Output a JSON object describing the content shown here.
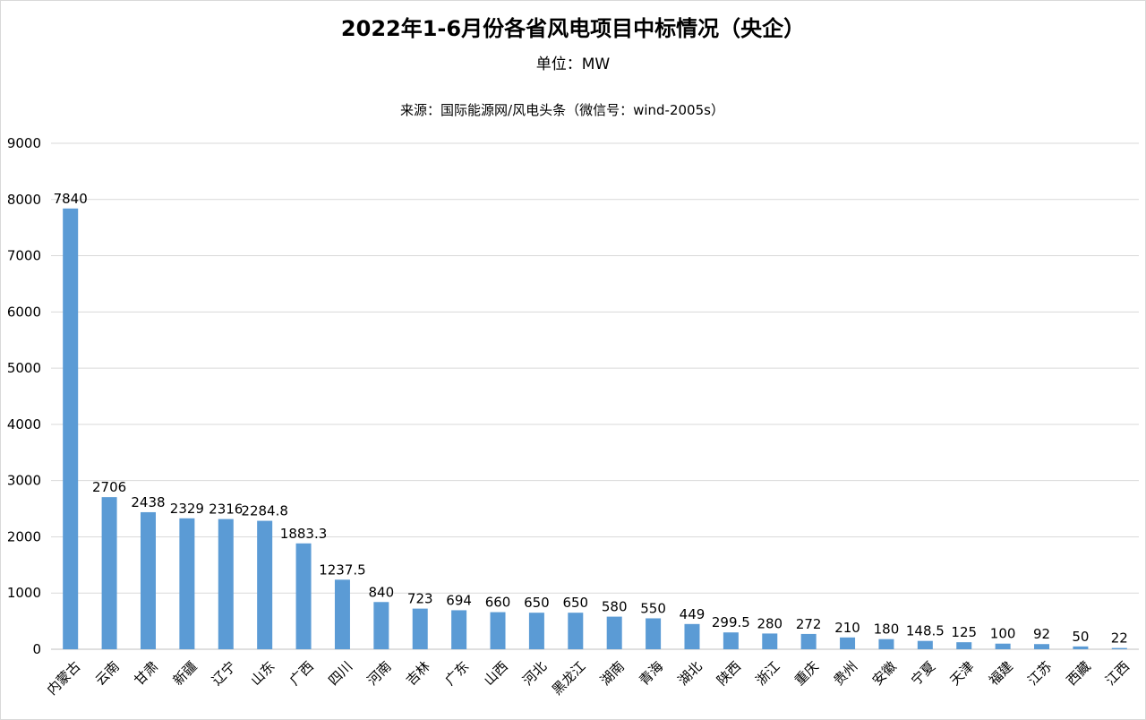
{
  "chart_data": {
    "type": "bar",
    "title": "2022年1-6月份各省风电项目中标情况（央企）",
    "subtitle": "单位：MW",
    "source": "来源：国际能源网/风电头条（微信号：wind-2005s）",
    "categories": [
      "内蒙古",
      "云南",
      "甘肃",
      "新疆",
      "辽宁",
      "山东",
      "广西",
      "四川",
      "河南",
      "吉林",
      "广东",
      "山西",
      "河北",
      "黑龙江",
      "湖南",
      "青海",
      "湖北",
      "陕西",
      "浙江",
      "重庆",
      "贵州",
      "安徽",
      "宁夏",
      "天津",
      "福建",
      "江苏",
      "西藏",
      "江西"
    ],
    "values": [
      7840,
      2706,
      2438,
      2329,
      2316,
      2284.8,
      1883.3,
      1237.5,
      840,
      723,
      694,
      660,
      650,
      650,
      580,
      550,
      449,
      299.5,
      280,
      272,
      210,
      180,
      148.5,
      125,
      100,
      92,
      50,
      22
    ],
    "value_labels": [
      "7840",
      "2706",
      "2438",
      "2329",
      "2316",
      "2284.8",
      "1883.3",
      "1237.5",
      "840",
      "723",
      "694",
      "660",
      "650",
      "650",
      "580",
      "550",
      "449",
      "299.5",
      "280",
      "272",
      "210",
      "180",
      "148.5",
      "125",
      "100",
      "92",
      "50",
      "22"
    ],
    "ylim": [
      0,
      9000
    ],
    "yticks": [
      0,
      1000,
      2000,
      3000,
      4000,
      5000,
      6000,
      7000,
      8000,
      9000
    ],
    "grid": true,
    "legend": "none",
    "bar_color": "#5b9bd5",
    "grid_color": "#d9d9d9"
  }
}
